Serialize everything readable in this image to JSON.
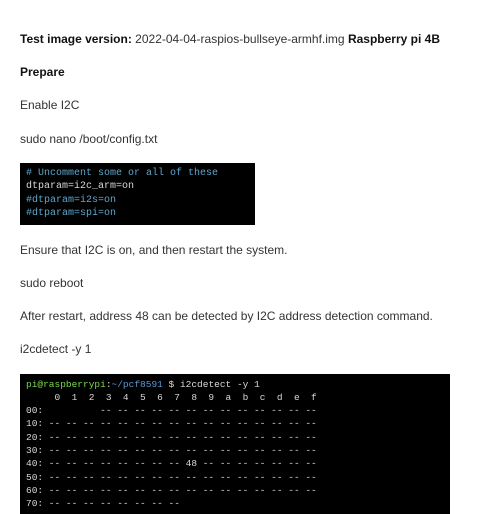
{
  "intro": {
    "label": "Test image version:",
    "version": "2022-04-04-raspios-bullseye-armhf.img",
    "device": "Raspberry pi 4B"
  },
  "prepare_heading": "Prepare",
  "enable_text": "Enable I2C",
  "cmd_nano": "sudo nano /boot/config.txt",
  "terminal_small": {
    "line1": "# Uncomment some or all of these",
    "line2": "dtparam=i2c_arm=on",
    "line3": "#dtparam=i2s=on",
    "line4": "#dtparam=spi=on",
    "colors": {
      "comment": "#5ea7cc",
      "plain": "#d8d8d8",
      "background": "#000000"
    }
  },
  "ensure_text": "Ensure that I2C is on, and then restart the system.",
  "cmd_reboot": "sudo reboot",
  "after_text": "After restart, address 48 can be detected by I2C address detection command.",
  "cmd_detect": "i2cdetect -y 1",
  "terminal_large": {
    "prompt": {
      "user": "pi@raspberrypi",
      "path": "~/pcf8591",
      "symbol": "$",
      "command": "i2cdetect -y 1"
    },
    "header": "     0  1  2  3  4  5  6  7  8  9  a  b  c  d  e  f",
    "rows": [
      "00:          -- -- -- -- -- -- -- -- -- -- -- -- --",
      "10: -- -- -- -- -- -- -- -- -- -- -- -- -- -- -- --",
      "20: -- -- -- -- -- -- -- -- -- -- -- -- -- -- -- --",
      "30: -- -- -- -- -- -- -- -- -- -- -- -- -- -- -- --",
      "40: -- -- -- -- -- -- -- -- 48 -- -- -- -- -- -- --",
      "50: -- -- -- -- -- -- -- -- -- -- -- -- -- -- -- --",
      "60: -- -- -- -- -- -- -- -- -- -- -- -- -- -- -- --",
      "70: -- -- -- -- -- -- -- --"
    ],
    "colors": {
      "user": "#7bd94c",
      "path": "#5a9bd4",
      "text": "#d8d8d8",
      "background": "#000000"
    }
  }
}
